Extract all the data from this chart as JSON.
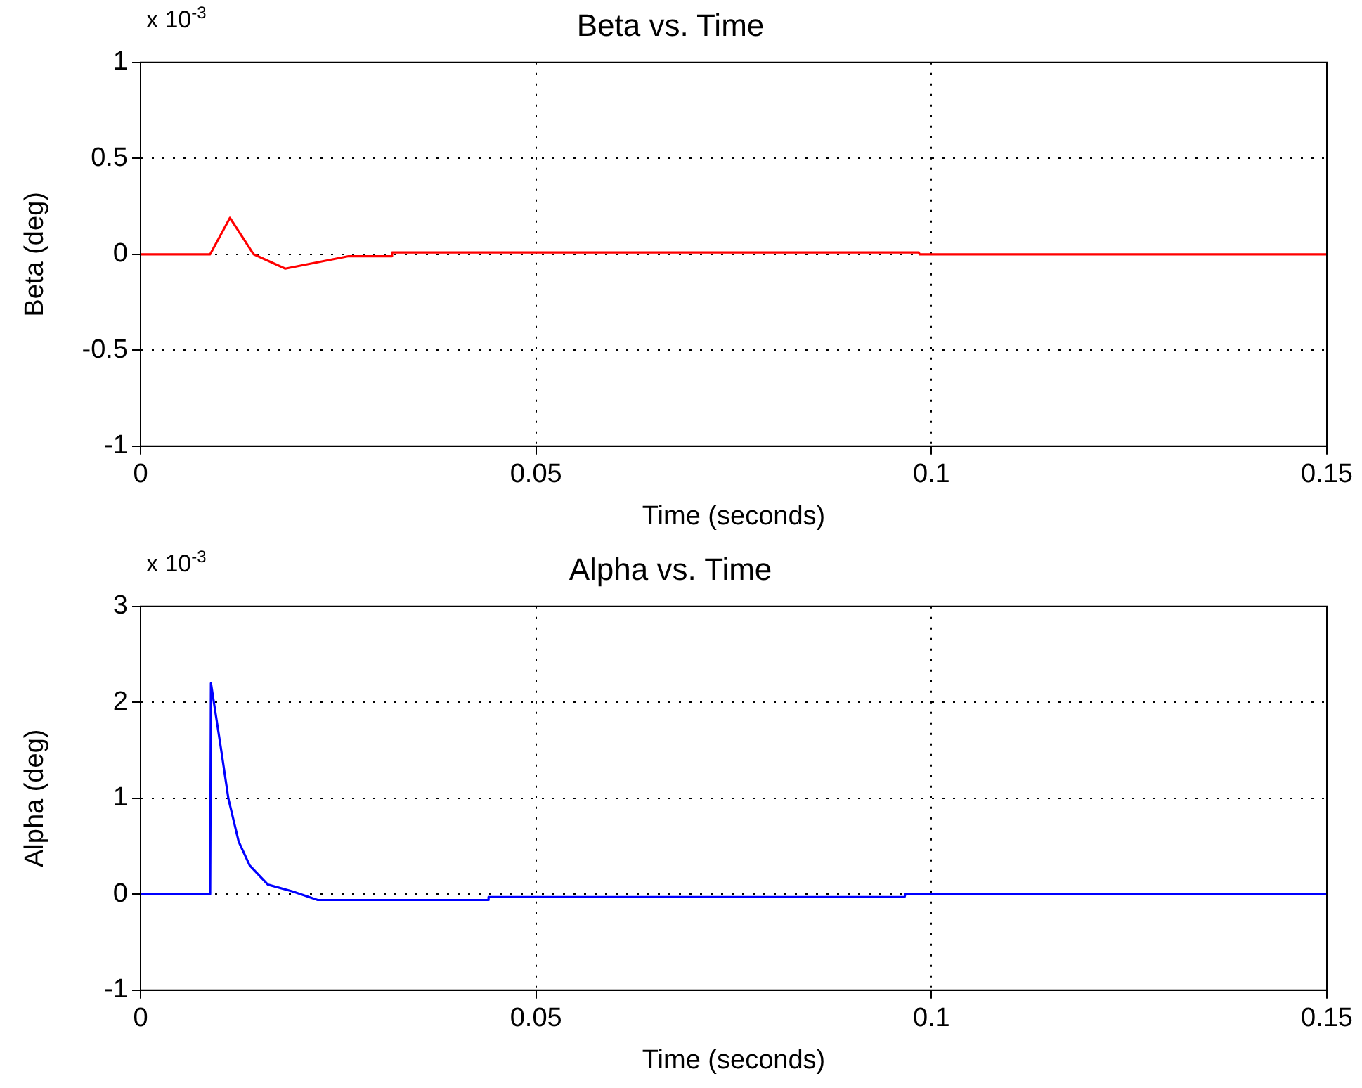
{
  "chart_data": [
    {
      "type": "line",
      "title": "Beta vs. Time",
      "xlabel": "Time (seconds)",
      "ylabel": "Beta (deg)",
      "annotations": [
        "x 10$^{-3}$"
      ],
      "series": [
        {
          "color": "#ff0000",
          "x": [
            0,
            0.0088,
            0.0113,
            0.0143,
            0.0183,
            0.0263,
            0.0317,
            0.0318,
            0.0984,
            0.0985,
            0.15
          ],
          "values": [
            0,
            0,
            0.19,
            0,
            -0.075,
            -0.01,
            -0.01,
            0.01,
            0.01,
            0,
            0
          ]
        }
      ],
      "xlim": [
        0,
        0.15
      ],
      "xticks": [
        0,
        0.05,
        0.1,
        0.15
      ],
      "ylim": [
        -1,
        1
      ],
      "yticks": [
        -1,
        -0.5,
        0,
        0.5,
        1
      ],
      "grid": true,
      "legend": false,
      "marker": "none",
      "line_style": "solid"
    },
    {
      "type": "line",
      "title": "Alpha vs. Time",
      "xlabel": "Time (seconds)",
      "ylabel": "Alpha (deg)",
      "annotations": [
        "x 10$^{-3}$"
      ],
      "series": [
        {
          "color": "#0000ff",
          "x": [
            0,
            0.0088,
            0.0089,
            0.0102,
            0.0111,
            0.0124,
            0.0138,
            0.0161,
            0.0192,
            0.0224,
            0.0439,
            0.044,
            0.0966,
            0.0967,
            0.15
          ],
          "values": [
            0,
            0,
            2.2,
            1.5,
            1.0,
            0.55,
            0.3,
            0.1,
            0.03,
            -0.06,
            -0.06,
            -0.03,
            -0.03,
            0,
            0
          ]
        }
      ],
      "xlim": [
        0,
        0.15
      ],
      "xticks": [
        0,
        0.05,
        0.1,
        0.15
      ],
      "ylim": [
        -1,
        3
      ],
      "yticks": [
        -1,
        0,
        1,
        2,
        3
      ],
      "grid": true,
      "legend": false,
      "marker": "none",
      "line_style": "solid"
    }
  ]
}
